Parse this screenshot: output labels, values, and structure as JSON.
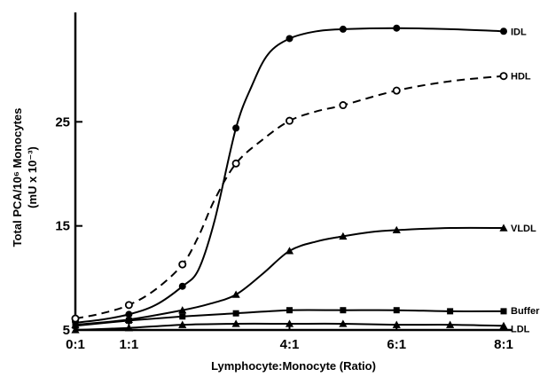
{
  "chart_data": {
    "type": "line",
    "title": "",
    "xlabel": "Lymphocyte:Monocyte (Ratio)",
    "ylabel_line1": "Total PCA/10⁶ Monocytes",
    "ylabel_line2": "(mU x 10⁻³)",
    "xlim": [
      0,
      8
    ],
    "ylim": [
      5,
      35
    ],
    "x_ticks": [
      {
        "value": 0,
        "label": "0:1"
      },
      {
        "value": 1,
        "label": "1:1"
      },
      {
        "value": 4,
        "label": "4:1"
      },
      {
        "value": 6,
        "label": "6:1"
      },
      {
        "value": 8,
        "label": "8:1"
      }
    ],
    "y_ticks": [
      {
        "value": 5,
        "label": "5"
      },
      {
        "value": 15,
        "label": "15"
      },
      {
        "value": 25,
        "label": "25"
      }
    ],
    "grid": false,
    "legend": "labels at right end of each series",
    "series": [
      {
        "name": "IDL",
        "marker": "filled-circle",
        "dash": "solid",
        "x": [
          0,
          1,
          2,
          3,
          4,
          5,
          6,
          8
        ],
        "y": [
          5.8,
          6.5,
          9.2,
          24.4,
          33.0,
          33.9,
          34.0,
          33.7
        ],
        "curve_x": [
          0,
          0.5,
          1,
          1.5,
          2,
          2.3,
          2.6,
          3,
          3.3,
          3.6,
          4,
          4.5,
          5,
          6,
          7,
          8
        ],
        "curve_y": [
          5.7,
          6.0,
          6.5,
          7.4,
          9.2,
          10.8,
          15.5,
          24.4,
          28.5,
          31.5,
          33.0,
          33.7,
          33.9,
          34.0,
          33.9,
          33.7
        ]
      },
      {
        "name": "HDL",
        "marker": "open-circle",
        "dash": "dashed",
        "x": [
          0,
          1,
          2,
          3,
          4,
          5,
          6,
          8
        ],
        "y": [
          6.1,
          7.4,
          11.3,
          21.0,
          25.1,
          26.6,
          28.0,
          29.4
        ],
        "curve_x": [
          0,
          0.5,
          1,
          1.5,
          2,
          2.3,
          2.6,
          3,
          3.5,
          4,
          4.5,
          5,
          6,
          7,
          8
        ],
        "curve_y": [
          6.1,
          6.6,
          7.4,
          8.9,
          11.3,
          14.0,
          17.5,
          21.0,
          23.3,
          25.1,
          26.0,
          26.6,
          28.0,
          28.9,
          29.4
        ]
      },
      {
        "name": "VLDL",
        "marker": "filled-triangle",
        "dash": "solid",
        "x": [
          0,
          1,
          2,
          3,
          4,
          5,
          6,
          8
        ],
        "y": [
          5.5,
          6.0,
          6.9,
          8.4,
          12.6,
          14.0,
          14.6,
          14.8
        ],
        "curve_x": [
          0,
          1,
          2,
          2.5,
          3,
          3.5,
          4,
          4.5,
          5,
          5.5,
          6,
          7,
          8
        ],
        "curve_y": [
          5.5,
          6.0,
          6.9,
          7.5,
          8.4,
          10.4,
          12.6,
          13.5,
          14.0,
          14.4,
          14.6,
          14.8,
          14.8
        ]
      },
      {
        "name": "Buffer",
        "marker": "filled-square",
        "dash": "solid",
        "x": [
          0,
          1,
          2,
          3,
          4,
          5,
          6,
          7,
          8
        ],
        "y": [
          5.4,
          5.9,
          6.3,
          6.6,
          6.9,
          6.9,
          6.9,
          6.8,
          6.8
        ],
        "curve_x": [
          0,
          1,
          2,
          3,
          4,
          5,
          6,
          7,
          8
        ],
        "curve_y": [
          5.4,
          5.9,
          6.3,
          6.6,
          6.9,
          6.9,
          6.9,
          6.8,
          6.8
        ]
      },
      {
        "name": "LDL",
        "marker": "filled-triangle",
        "dash": "solid",
        "x": [
          0,
          1,
          2,
          3,
          4,
          5,
          6,
          7,
          8
        ],
        "y": [
          5.0,
          5.2,
          5.5,
          5.6,
          5.6,
          5.6,
          5.5,
          5.5,
          5.4
        ],
        "curve_x": [
          0,
          1,
          2,
          3,
          4,
          5,
          6,
          7,
          8
        ],
        "curve_y": [
          5.0,
          5.2,
          5.5,
          5.6,
          5.6,
          5.6,
          5.5,
          5.5,
          5.4
        ]
      }
    ]
  }
}
